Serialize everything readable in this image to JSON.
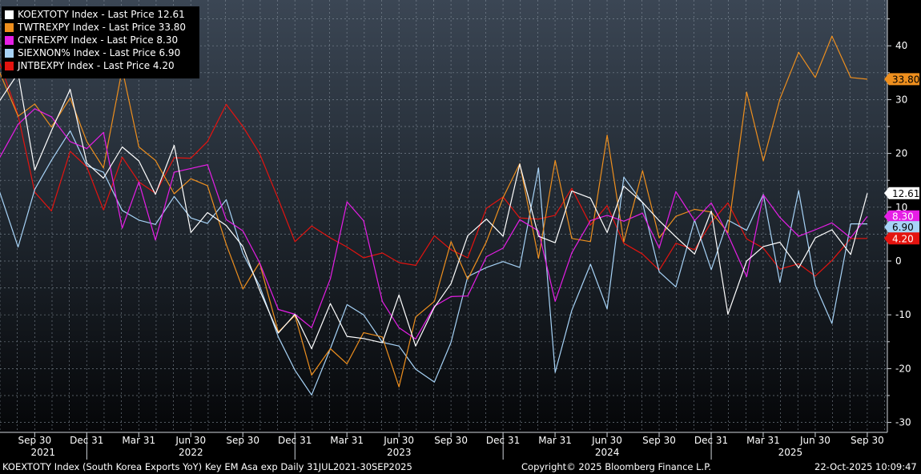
{
  "chart_data": {
    "type": "line",
    "x_ticks": [
      "Sep 30",
      "Dec 31",
      "Mar 31",
      "Jun 30",
      "Sep 30",
      "Dec 31",
      "Mar 31",
      "Jun 30",
      "Sep 30",
      "Dec 31",
      "Mar 31",
      "Jun 30",
      "Sep 30",
      "Dec 31",
      "Mar 31",
      "Jun 30",
      "Sep 30"
    ],
    "year_labels": [
      "2021",
      "2022",
      "2023",
      "2024",
      "2025"
    ],
    "x_range": [
      "2021-07-31",
      "2025-09-30"
    ],
    "y_ticks": [
      40,
      30,
      20,
      10,
      0,
      -10,
      -20,
      -30
    ],
    "ylim": [
      -31,
      47
    ],
    "y_axis_side": "right",
    "grid": true,
    "legend_placement": "top-left",
    "legend_prefix": [
      "KOEXTOTY",
      "TWTREXPY",
      "CNFREXPY",
      "SIEXNON%",
      "JNTBEXPY"
    ],
    "series": [
      {
        "name": "KOEXTOTY Index - Last Price",
        "last_value": "12.61",
        "color": "#ffffff",
        "label_text_color": "#000000",
        "values": [
          [
            2021.58,
            29.7
          ],
          [
            2021.67,
            34.9
          ],
          [
            2021.75,
            16.9
          ],
          [
            2021.83,
            24.2
          ],
          [
            2021.92,
            31.9
          ],
          [
            2022.0,
            18.2
          ],
          [
            2022.08,
            15.4
          ],
          [
            2022.17,
            21.2
          ],
          [
            2022.25,
            18.6
          ],
          [
            2022.33,
            12.4
          ],
          [
            2022.42,
            21.5
          ],
          [
            2022.5,
            5.3
          ],
          [
            2022.58,
            9.0
          ],
          [
            2022.67,
            6.6
          ],
          [
            2022.75,
            2.7
          ],
          [
            2022.83,
            -5.4
          ],
          [
            2022.92,
            -13.4
          ],
          [
            2023.0,
            -9.9
          ],
          [
            2023.08,
            -16.3
          ],
          [
            2023.17,
            -7.9
          ],
          [
            2023.25,
            -14.0
          ],
          [
            2023.33,
            -14.4
          ],
          [
            2023.42,
            -15.2
          ],
          [
            2023.5,
            -6.3
          ],
          [
            2023.58,
            -15.8
          ],
          [
            2023.67,
            -8.6
          ],
          [
            2023.75,
            -4.2
          ],
          [
            2023.83,
            4.7
          ],
          [
            2023.92,
            7.8
          ],
          [
            2024.0,
            4.6
          ],
          [
            2024.08,
            18.0
          ],
          [
            2024.17,
            4.6
          ],
          [
            2024.25,
            3.4
          ],
          [
            2024.33,
            13.0
          ],
          [
            2024.42,
            11.7
          ],
          [
            2024.5,
            5.3
          ],
          [
            2024.58,
            13.9
          ],
          [
            2024.67,
            10.9
          ],
          [
            2024.75,
            7.5
          ],
          [
            2024.83,
            4.5
          ],
          [
            2024.92,
            1.3
          ],
          [
            2025.0,
            9.3
          ],
          [
            2025.08,
            -9.9
          ],
          [
            2025.17,
            0.0
          ],
          [
            2025.25,
            2.7
          ],
          [
            2025.33,
            3.5
          ],
          [
            2025.42,
            -1.3
          ],
          [
            2025.5,
            4.3
          ],
          [
            2025.58,
            5.8
          ],
          [
            2025.67,
            1.2
          ],
          [
            2025.75,
            12.61
          ]
        ]
      },
      {
        "name": "TWTREXPY Index - Last Price",
        "last_value": "33.80",
        "color": "#ee8f1e",
        "label_text_color": "#000000",
        "values": [
          [
            2021.58,
            35.2
          ],
          [
            2021.67,
            26.9
          ],
          [
            2021.75,
            29.2
          ],
          [
            2021.83,
            24.9
          ],
          [
            2021.92,
            30.3
          ],
          [
            2022.0,
            22.2
          ],
          [
            2022.08,
            17.3
          ],
          [
            2022.17,
            35.7
          ],
          [
            2022.25,
            21.2
          ],
          [
            2022.33,
            18.7
          ],
          [
            2022.42,
            12.5
          ],
          [
            2022.5,
            15.3
          ],
          [
            2022.58,
            14.0
          ],
          [
            2022.67,
            3.1
          ],
          [
            2022.75,
            -5.2
          ],
          [
            2022.83,
            -0.3
          ],
          [
            2022.92,
            -13.2
          ],
          [
            2023.0,
            -10.1
          ],
          [
            2023.08,
            -21.2
          ],
          [
            2023.17,
            -16.3
          ],
          [
            2023.25,
            -19.1
          ],
          [
            2023.33,
            -13.3
          ],
          [
            2023.42,
            -14.1
          ],
          [
            2023.5,
            -23.4
          ],
          [
            2023.58,
            -10.4
          ],
          [
            2023.67,
            -7.5
          ],
          [
            2023.75,
            3.6
          ],
          [
            2023.83,
            -3.4
          ],
          [
            2023.92,
            3.6
          ],
          [
            2024.0,
            11.8
          ],
          [
            2024.08,
            18.1
          ],
          [
            2024.17,
            0.5
          ],
          [
            2024.25,
            18.7
          ],
          [
            2024.33,
            4.2
          ],
          [
            2024.42,
            3.6
          ],
          [
            2024.5,
            23.4
          ],
          [
            2024.58,
            3.6
          ],
          [
            2024.67,
            16.8
          ],
          [
            2024.75,
            4.3
          ],
          [
            2024.83,
            8.3
          ],
          [
            2024.92,
            9.6
          ],
          [
            2025.0,
            9.1
          ],
          [
            2025.08,
            5.3
          ],
          [
            2025.17,
            31.4
          ],
          [
            2025.25,
            18.6
          ],
          [
            2025.33,
            30.1
          ],
          [
            2025.42,
            38.8
          ],
          [
            2025.5,
            34.1
          ],
          [
            2025.58,
            41.8
          ],
          [
            2025.67,
            34.1
          ],
          [
            2025.75,
            33.8
          ]
        ]
      },
      {
        "name": "CNFREXPY Index - Last Price",
        "last_value": "8.30",
        "color": "#e61ee6",
        "label_text_color": "#ffffff",
        "values": [
          [
            2021.58,
            19.1
          ],
          [
            2021.67,
            25.4
          ],
          [
            2021.75,
            28.3
          ],
          [
            2021.83,
            26.8
          ],
          [
            2021.92,
            22.2
          ],
          [
            2022.0,
            20.9
          ],
          [
            2022.08,
            23.9
          ],
          [
            2022.17,
            6.1
          ],
          [
            2022.25,
            14.7
          ],
          [
            2022.33,
            3.9
          ],
          [
            2022.42,
            16.5
          ],
          [
            2022.5,
            17.2
          ],
          [
            2022.58,
            17.9
          ],
          [
            2022.67,
            7.7
          ],
          [
            2022.75,
            5.6
          ],
          [
            2022.83,
            -0.3
          ],
          [
            2022.92,
            -9.0
          ],
          [
            2023.0,
            -9.9
          ],
          [
            2023.08,
            -12.4
          ],
          [
            2023.17,
            -3.3
          ],
          [
            2023.25,
            11.0
          ],
          [
            2023.33,
            7.5
          ],
          [
            2023.42,
            -7.5
          ],
          [
            2023.5,
            -12.4
          ],
          [
            2023.58,
            -14.5
          ],
          [
            2023.67,
            -8.4
          ],
          [
            2023.75,
            -6.6
          ],
          [
            2023.83,
            -6.5
          ],
          [
            2023.92,
            0.8
          ],
          [
            2024.0,
            2.4
          ],
          [
            2024.08,
            7.7
          ],
          [
            2024.17,
            5.6
          ],
          [
            2024.25,
            -7.5
          ],
          [
            2024.33,
            1.5
          ],
          [
            2024.42,
            7.5
          ],
          [
            2024.5,
            8.5
          ],
          [
            2024.58,
            7.4
          ],
          [
            2024.67,
            8.9
          ],
          [
            2024.75,
            2.4
          ],
          [
            2024.83,
            12.9
          ],
          [
            2024.92,
            7.5
          ],
          [
            2025.0,
            10.8
          ],
          [
            2025.08,
            4.9
          ],
          [
            2025.17,
            -2.9
          ],
          [
            2025.25,
            12.3
          ],
          [
            2025.33,
            8.1
          ],
          [
            2025.42,
            4.6
          ],
          [
            2025.5,
            5.8
          ],
          [
            2025.58,
            7.1
          ],
          [
            2025.67,
            4.3
          ],
          [
            2025.75,
            8.3
          ]
        ]
      },
      {
        "name": "SIEXNON% Index - Last Price",
        "last_value": "6.90",
        "color": "#a7d3f7",
        "label_text_color": "#000000",
        "values": [
          [
            2021.58,
            13.0
          ],
          [
            2021.67,
            2.6
          ],
          [
            2021.75,
            13.3
          ],
          [
            2021.83,
            18.7
          ],
          [
            2021.92,
            24.2
          ],
          [
            2022.0,
            17.7
          ],
          [
            2022.08,
            16.5
          ],
          [
            2022.17,
            9.4
          ],
          [
            2022.25,
            7.6
          ],
          [
            2022.33,
            6.8
          ],
          [
            2022.42,
            12.0
          ],
          [
            2022.5,
            8.0
          ],
          [
            2022.58,
            7.0
          ],
          [
            2022.67,
            11.4
          ],
          [
            2022.75,
            1.4
          ],
          [
            2022.83,
            -4.6
          ],
          [
            2022.92,
            -14.1
          ],
          [
            2023.0,
            -20.3
          ],
          [
            2023.08,
            -24.9
          ],
          [
            2023.17,
            -16.3
          ],
          [
            2023.25,
            -8.1
          ],
          [
            2023.33,
            -10.0
          ],
          [
            2023.42,
            -15.1
          ],
          [
            2023.5,
            -15.8
          ],
          [
            2023.58,
            -20.1
          ],
          [
            2023.67,
            -22.5
          ],
          [
            2023.75,
            -15.1
          ],
          [
            2023.83,
            -2.9
          ],
          [
            2023.92,
            -1.2
          ],
          [
            2024.0,
            -0.1
          ],
          [
            2024.08,
            -1.2
          ],
          [
            2024.17,
            17.3
          ],
          [
            2024.25,
            -20.7
          ],
          [
            2024.33,
            -9.2
          ],
          [
            2024.42,
            -0.6
          ],
          [
            2024.5,
            -8.9
          ],
          [
            2024.58,
            15.6
          ],
          [
            2024.67,
            10.8
          ],
          [
            2024.75,
            -2.0
          ],
          [
            2024.83,
            -4.8
          ],
          [
            2024.92,
            7.6
          ],
          [
            2025.0,
            -1.6
          ],
          [
            2025.08,
            7.6
          ],
          [
            2025.17,
            5.7
          ],
          [
            2025.25,
            12.4
          ],
          [
            2025.33,
            -4.0
          ],
          [
            2025.42,
            13.1
          ],
          [
            2025.5,
            -4.5
          ],
          [
            2025.58,
            -11.6
          ],
          [
            2025.67,
            6.9
          ],
          [
            2025.75,
            6.9
          ]
        ]
      },
      {
        "name": "JNTBEXPY Index - Last Price",
        "last_value": "4.20",
        "color": "#e4130f",
        "label_text_color": "#ffffff",
        "values": [
          [
            2021.58,
            37.0
          ],
          [
            2021.67,
            27.1
          ],
          [
            2021.75,
            12.8
          ],
          [
            2021.83,
            9.3
          ],
          [
            2021.92,
            20.4
          ],
          [
            2022.0,
            17.5
          ],
          [
            2022.08,
            9.5
          ],
          [
            2022.17,
            19.3
          ],
          [
            2022.25,
            14.7
          ],
          [
            2022.33,
            12.6
          ],
          [
            2022.42,
            19.2
          ],
          [
            2022.5,
            19.1
          ],
          [
            2022.58,
            22.2
          ],
          [
            2022.67,
            29.1
          ],
          [
            2022.75,
            25.0
          ],
          [
            2022.83,
            20.0
          ],
          [
            2022.92,
            11.5
          ],
          [
            2023.0,
            3.6
          ],
          [
            2023.08,
            6.5
          ],
          [
            2023.17,
            4.3
          ],
          [
            2023.25,
            2.6
          ],
          [
            2023.33,
            0.6
          ],
          [
            2023.42,
            1.5
          ],
          [
            2023.5,
            -0.3
          ],
          [
            2023.58,
            -0.8
          ],
          [
            2023.67,
            4.7
          ],
          [
            2023.75,
            2.1
          ],
          [
            2023.83,
            0.6
          ],
          [
            2023.92,
            9.8
          ],
          [
            2024.0,
            11.9
          ],
          [
            2024.08,
            8.0
          ],
          [
            2024.17,
            7.8
          ],
          [
            2024.25,
            8.5
          ],
          [
            2024.33,
            13.5
          ],
          [
            2024.42,
            6.7
          ],
          [
            2024.5,
            10.3
          ],
          [
            2024.58,
            3.3
          ],
          [
            2024.67,
            1.3
          ],
          [
            2024.75,
            -1.7
          ],
          [
            2024.83,
            3.3
          ],
          [
            2024.92,
            2.1
          ],
          [
            2025.0,
            7.2
          ],
          [
            2025.08,
            10.8
          ],
          [
            2025.17,
            4.1
          ],
          [
            2025.25,
            2.4
          ],
          [
            2025.33,
            -1.5
          ],
          [
            2025.42,
            -0.5
          ],
          [
            2025.5,
            -2.8
          ],
          [
            2025.58,
            0.1
          ],
          [
            2025.67,
            4.2
          ],
          [
            2025.75,
            4.2
          ]
        ]
      }
    ]
  },
  "footer": {
    "description": "KOEXTOTY Index (South Korea Exports YoY) Key EM Asa exp Daily 31JUL2021-30SEP2025",
    "copyright": "Copyright© 2025 Bloomberg Finance L.P.",
    "timestamp": "22-Oct-2025 10:09:47"
  }
}
